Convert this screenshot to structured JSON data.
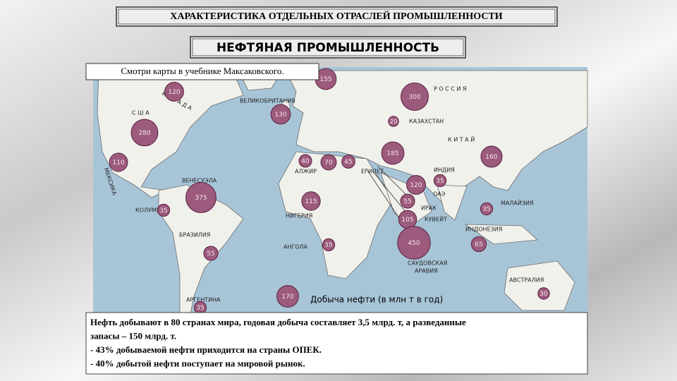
{
  "header": {
    "title": "ХАРАКТЕРИСТИКА ОТДЕЛЬНЫХ ОТРАСЛЕЙ ПРОМЫШЛЕННОСТИ",
    "subtitle": "НЕФТЯНАЯ ПРОМЫШЛЕННОСТЬ",
    "note": "Смотри карты в учебнике Максаковского."
  },
  "map": {
    "labels": [
      "К А Н А Д А",
      "С Ш А",
      "МЕКСИКА",
      "ВЕЛИКОБРИТАНИЯ",
      "Р О С С И Я",
      "КАЗАХСТАН",
      "К И Т А Й",
      "АЛЖИР",
      "ЕГИПЕТ",
      "ИНДИЯ",
      "ОАЭ",
      "ИРАК",
      "КУВЕЙТ",
      "ВЕНЕСУЭЛА",
      "КОЛУМБИЯ",
      "НИГЕРИЯ",
      "МАЛАЙЗИЯ",
      "ИНДОНЕЗИЯ",
      "БРАЗИЛИЯ",
      "АНГОЛА",
      "САУДОВСКАЯ",
      "АРАВИЯ",
      "АВСТРАЛИЯ",
      "АРГЕНТИНА"
    ],
    "bubbles": [
      155,
      120,
      300,
      130,
      280,
      20,
      110,
      40,
      70,
      45,
      185,
      160,
      120,
      35,
      375,
      115,
      55,
      35,
      35,
      105,
      450,
      35,
      65,
      55,
      30,
      35
    ]
  },
  "legend": {
    "value": 170,
    "label": "Добыча нефти (в млн т в год)"
  },
  "footer": {
    "lines": [
      "Нефть добывают в 80 странах мира, годовая добыча составляет 3,5 млрд. т, а разведанные",
      "запасы – 150 млрд. т.",
      "- 43% добываемой нефти приходится на страны ОПЕК.",
      "- 40% добытой нефти поступает на мировой рынок."
    ]
  }
}
